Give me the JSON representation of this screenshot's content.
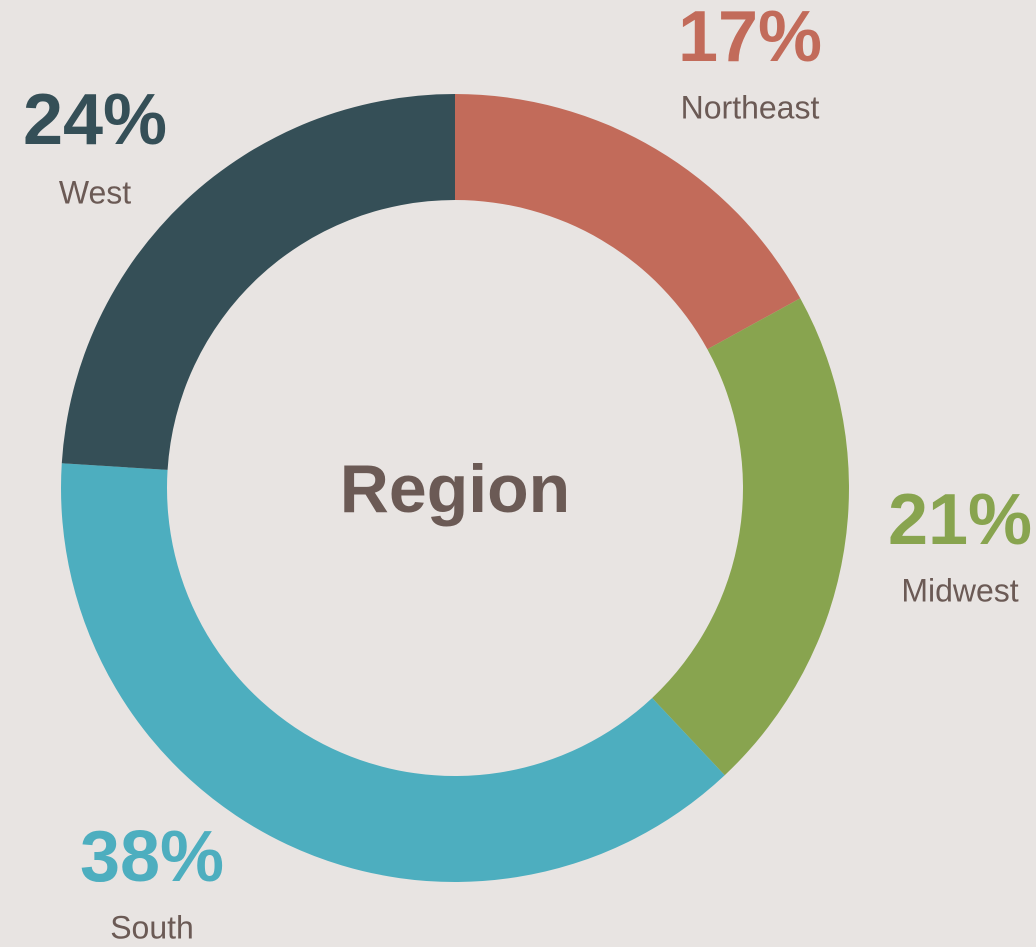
{
  "chart_data": {
    "type": "donut",
    "title": "Region",
    "categories": [
      "Northeast",
      "Midwest",
      "South",
      "West"
    ],
    "values": [
      17,
      21,
      38,
      24
    ],
    "value_labels": [
      "17%",
      "21%",
      "38%",
      "24%"
    ],
    "colors": [
      "#c26b5a",
      "#88a44f",
      "#4daebf",
      "#354f57"
    ]
  }
}
